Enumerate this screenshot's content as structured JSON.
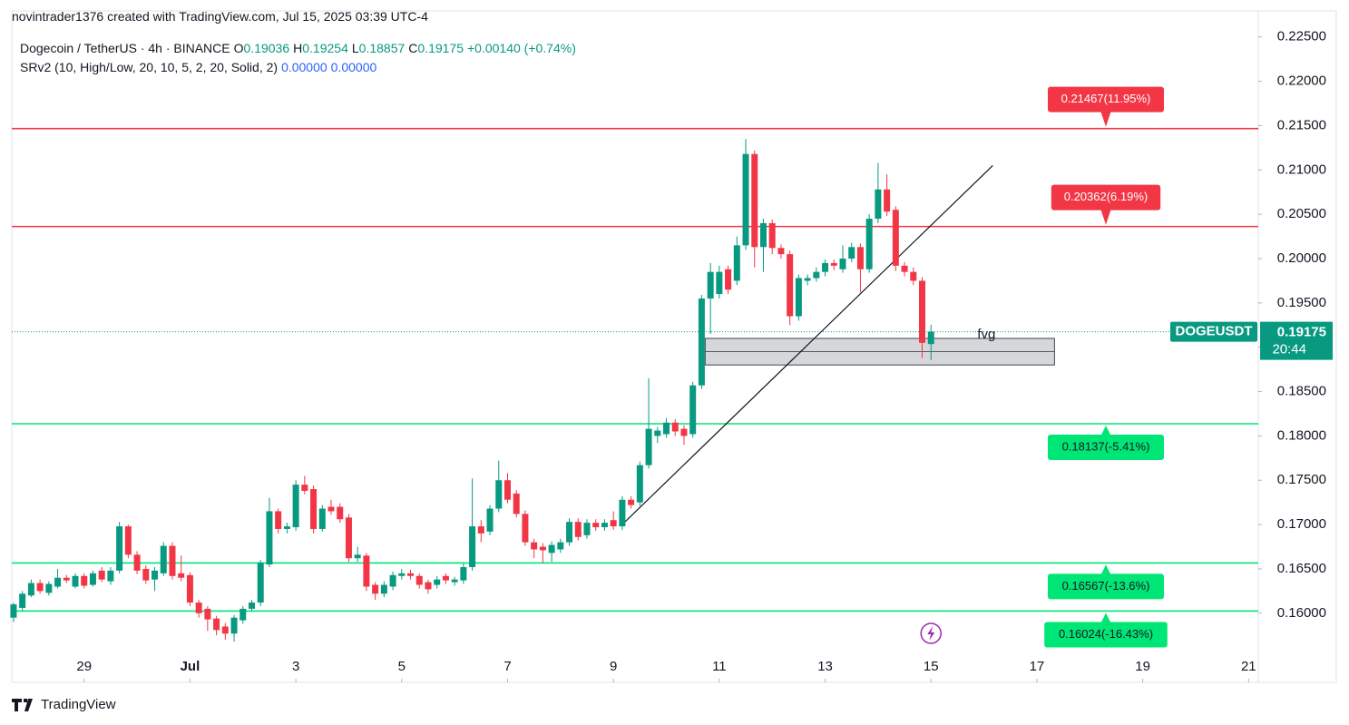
{
  "header": {
    "text": "novintrader1376 created with TradingView.com, Jul 15, 2025 03:39 UTC-4"
  },
  "footer": {
    "brand": "TradingView"
  },
  "chart_data": {
    "type": "candlestick",
    "symbol_legend": {
      "title": "Dogecoin / TetherUS · 4h · BINANCE",
      "ohlc_keys": [
        "O",
        "H",
        "L",
        "C"
      ],
      "change": "+0.00140 (+0.74%)"
    },
    "indicator": {
      "name": "SRv2 (10, High/Low, 20, 10, 5, 2, 20, Solid, 2)",
      "values": [
        "0.00000",
        "0.00000"
      ]
    },
    "open": [
      0.1595,
      0.1606,
      0.162,
      0.1634,
      0.1623,
      0.163,
      0.164,
      0.163,
      0.1642,
      0.1632,
      0.1648,
      0.1636,
      0.1648,
      0.1698,
      0.1666,
      0.165,
      0.1638,
      0.1645,
      0.1676,
      0.1645,
      0.1643,
      0.1612,
      0.1605,
      0.1594,
      0.1585,
      0.1577,
      0.1592,
      0.1605,
      0.1612,
      0.1655,
      0.1715,
      0.1695,
      0.1697,
      0.1745,
      0.174,
      0.1695,
      0.172,
      0.172,
      0.1708,
      0.1662,
      0.1665,
      0.1632,
      0.1622,
      0.163,
      0.1642,
      0.1645,
      0.1642,
      0.1635,
      0.1632,
      0.1642,
      0.1635,
      0.1637,
      0.1652,
      0.1698,
      0.1692,
      0.1718,
      0.175,
      0.1735,
      0.1712,
      0.168,
      0.1675,
      0.1668,
      0.1672,
      0.168,
      0.1703,
      0.1688,
      0.1702,
      0.1697,
      0.1705,
      0.1698,
      0.1728,
      0.1725,
      0.1767,
      0.18,
      0.1802,
      0.1815,
      0.1808,
      0.1802,
      0.1857,
      0.1955,
      0.196,
      0.1988,
      0.1975,
      0.2015,
      0.2118,
      0.2013,
      0.204,
      0.2012,
      0.2005,
      0.1935,
      0.1975,
      0.1978,
      0.1985,
      0.1995,
      0.1988,
      0.2,
      0.2013,
      0.1988,
      0.2045,
      0.2078,
      0.2055,
      0.1992,
      0.1985,
      0.1975,
      0.19036
    ],
    "high": [
      0.1612,
      0.1625,
      0.1638,
      0.1638,
      0.1636,
      0.165,
      0.1643,
      0.1645,
      0.1645,
      0.1648,
      0.1652,
      0.1652,
      0.1703,
      0.17,
      0.167,
      0.1654,
      0.1652,
      0.168,
      0.168,
      0.1665,
      0.1646,
      0.1615,
      0.1608,
      0.1597,
      0.1589,
      0.1598,
      0.1608,
      0.1615,
      0.166,
      0.173,
      0.1718,
      0.1702,
      0.175,
      0.1755,
      0.1744,
      0.1722,
      0.1728,
      0.1724,
      0.1712,
      0.1675,
      0.1668,
      0.1635,
      0.1636,
      0.1647,
      0.165,
      0.1649,
      0.1645,
      0.1638,
      0.1642,
      0.1645,
      0.1641,
      0.1656,
      0.1752,
      0.1705,
      0.1722,
      0.1772,
      0.1758,
      0.1739,
      0.1716,
      0.1684,
      0.1679,
      0.1681,
      0.1684,
      0.1707,
      0.1707,
      0.1706,
      0.1706,
      0.1706,
      0.1715,
      0.1732,
      0.1732,
      0.1771,
      0.1865,
      0.181,
      0.182,
      0.1819,
      0.1812,
      0.1861,
      0.1959,
      0.1995,
      0.1992,
      0.1992,
      0.2025,
      0.2135,
      0.2122,
      0.2045,
      0.2044,
      0.2016,
      0.2009,
      0.1982,
      0.1982,
      0.199,
      0.1999,
      0.1999,
      0.2015,
      0.2018,
      0.2017,
      0.205,
      0.2108,
      0.2095,
      0.2059,
      0.1996,
      0.199,
      0.1979,
      0.19254
    ],
    "low": [
      0.159,
      0.1603,
      0.1618,
      0.1622,
      0.162,
      0.1628,
      0.1634,
      0.1628,
      0.1628,
      0.163,
      0.1635,
      0.1632,
      0.1645,
      0.1662,
      0.1644,
      0.1633,
      0.1625,
      0.1642,
      0.1638,
      0.1636,
      0.1608,
      0.1595,
      0.158,
      0.1575,
      0.157,
      0.1568,
      0.1588,
      0.1602,
      0.1608,
      0.1652,
      0.169,
      0.169,
      0.1693,
      0.1734,
      0.169,
      0.1692,
      0.1711,
      0.1702,
      0.1658,
      0.1658,
      0.1625,
      0.1615,
      0.1618,
      0.1626,
      0.1638,
      0.1638,
      0.1628,
      0.1622,
      0.1628,
      0.1633,
      0.1631,
      0.1633,
      0.1648,
      0.168,
      0.1688,
      0.1714,
      0.1724,
      0.1708,
      0.1676,
      0.1662,
      0.1657,
      0.1658,
      0.1668,
      0.1676,
      0.1682,
      0.1684,
      0.1693,
      0.1693,
      0.1694,
      0.1694,
      0.1718,
      0.1721,
      0.1763,
      0.1792,
      0.1798,
      0.18,
      0.179,
      0.1798,
      0.1853,
      0.1915,
      0.1955,
      0.196,
      0.197,
      0.201,
      0.199,
      0.1985,
      0.2005,
      0.2,
      0.1925,
      0.193,
      0.197,
      0.1974,
      0.198,
      0.1987,
      0.1984,
      0.1996,
      0.1962,
      0.1984,
      0.204,
      0.2048,
      0.1986,
      0.198,
      0.197,
      0.1888,
      0.18857
    ],
    "close": [
      0.161,
      0.1622,
      0.1634,
      0.1625,
      0.1633,
      0.164,
      0.1637,
      0.1642,
      0.1631,
      0.1645,
      0.1638,
      0.1648,
      0.1698,
      0.1666,
      0.1648,
      0.1637,
      0.1648,
      0.1676,
      0.1642,
      0.164,
      0.1612,
      0.16,
      0.1593,
      0.1581,
      0.1577,
      0.1595,
      0.1605,
      0.1612,
      0.1657,
      0.1715,
      0.1695,
      0.1698,
      0.1745,
      0.1738,
      0.1695,
      0.1718,
      0.1715,
      0.1706,
      0.1662,
      0.1666,
      0.163,
      0.1622,
      0.1632,
      0.1643,
      0.1645,
      0.1642,
      0.1632,
      0.1627,
      0.1638,
      0.1637,
      0.1638,
      0.1652,
      0.1698,
      0.169,
      0.1718,
      0.175,
      0.1728,
      0.1712,
      0.168,
      0.1672,
      0.1671,
      0.1677,
      0.168,
      0.1703,
      0.1686,
      0.1702,
      0.1697,
      0.1702,
      0.1698,
      0.1728,
      0.1722,
      0.1767,
      0.1808,
      0.1806,
      0.1815,
      0.1805,
      0.18,
      0.1857,
      0.1955,
      0.1985,
      0.1985,
      0.1965,
      0.2015,
      0.2118,
      0.2013,
      0.204,
      0.2012,
      0.2005,
      0.1935,
      0.1978,
      0.1978,
      0.1985,
      0.1995,
      0.1992,
      0.2,
      0.2013,
      0.1988,
      0.2045,
      0.2078,
      0.2053,
      0.1992,
      0.1985,
      0.1975,
      0.1905,
      0.19175
    ],
    "up_color": "#089981",
    "down_color": "#f23645",
    "xlim": [
      -0.2,
      141.1
    ],
    "xticks": [
      {
        "value": 8,
        "label": "29"
      },
      {
        "value": 20,
        "label": "Jul"
      },
      {
        "value": 32,
        "label": "3"
      },
      {
        "value": 44,
        "label": "5"
      },
      {
        "value": 56,
        "label": "7"
      },
      {
        "value": 68,
        "label": "9"
      },
      {
        "value": 80,
        "label": "11"
      },
      {
        "value": 92,
        "label": "13"
      },
      {
        "value": 104,
        "label": "15"
      },
      {
        "value": 116,
        "label": "17"
      },
      {
        "value": 128,
        "label": "19"
      },
      {
        "value": 140,
        "label": "21"
      }
    ],
    "ylim": [
      0.1522,
      0.2261
    ],
    "yticks": [
      {
        "value": 0.16,
        "label": "0.16000"
      },
      {
        "value": 0.165,
        "label": "0.16500"
      },
      {
        "value": 0.17,
        "label": "0.17000"
      },
      {
        "value": 0.175,
        "label": "0.17500"
      },
      {
        "value": 0.18,
        "label": "0.18000"
      },
      {
        "value": 0.185,
        "label": "0.18500"
      },
      {
        "value": 0.19,
        "label": "0.19000"
      },
      {
        "value": 0.195,
        "label": "0.19500"
      },
      {
        "value": 0.2,
        "label": "0.20000"
      },
      {
        "value": 0.205,
        "label": "0.20500"
      },
      {
        "value": 0.21,
        "label": "0.21000"
      },
      {
        "value": 0.215,
        "label": "0.21500"
      },
      {
        "value": 0.22,
        "label": "0.22000"
      },
      {
        "value": 0.225,
        "label": "0.22500"
      }
    ],
    "levels": [
      {
        "value": 0.21467,
        "label": "0.21467(11.95%)",
        "color": "#f23645"
      },
      {
        "value": 0.20362,
        "label": "0.20362(6.19%)",
        "color": "#f23645"
      },
      {
        "value": 0.18137,
        "label": "0.18137(-5.41%)",
        "color": "#00e676"
      },
      {
        "value": 0.16567,
        "label": "0.16567(-13.6%)",
        "color": "#00e676"
      },
      {
        "value": 0.16024,
        "label": "0.16024(-16.43%)",
        "color": "#00e676"
      }
    ],
    "zone": {
      "x": [
        78.4,
        118
      ],
      "y": [
        0.188,
        0.191
      ],
      "label": "fvg"
    },
    "trendline": {
      "x": [
        69,
        111
      ],
      "y": [
        0.17,
        0.2105
      ]
    },
    "last_price": {
      "label": "DOGEUSDT",
      "countdown": "20:44"
    }
  }
}
